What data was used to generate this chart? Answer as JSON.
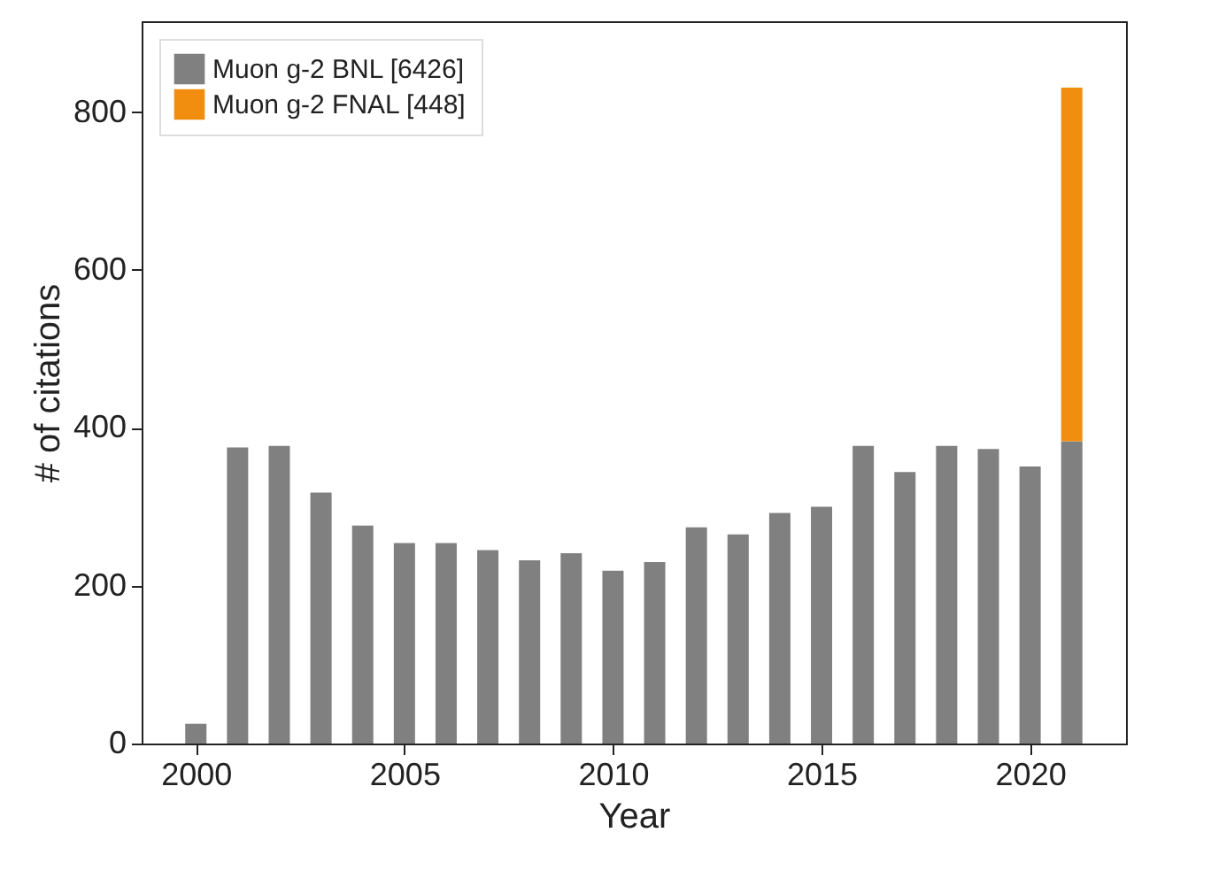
{
  "chart_data": {
    "type": "bar",
    "stacked": true,
    "xlabel": "Year",
    "ylabel": "# of citations",
    "x": [
      2000,
      2001,
      2002,
      2003,
      2004,
      2005,
      2006,
      2007,
      2008,
      2009,
      2010,
      2011,
      2012,
      2013,
      2014,
      2015,
      2016,
      2017,
      2018,
      2019,
      2020,
      2021
    ],
    "series": [
      {
        "name": "Muon g-2 BNL [6426]",
        "color": "#808080",
        "values": [
          25,
          375,
          377,
          318,
          276,
          254,
          254,
          245,
          232,
          241,
          219,
          230,
          274,
          265,
          292,
          300,
          377,
          344,
          377,
          373,
          351,
          383
        ]
      },
      {
        "name": "Muon g-2 FNAL [448]",
        "color": "#f28e0f",
        "values": [
          null,
          null,
          null,
          null,
          null,
          null,
          null,
          null,
          null,
          null,
          null,
          null,
          null,
          null,
          null,
          null,
          null,
          null,
          null,
          null,
          null,
          448
        ]
      }
    ],
    "xlim": [
      1998.7,
      2022.3
    ],
    "xticks": [
      2000,
      2005,
      2010,
      2015,
      2020
    ],
    "ylim": [
      0,
      915
    ],
    "yticks": [
      0,
      200,
      400,
      600,
      800
    ],
    "legend": "top left",
    "grid": false
  }
}
